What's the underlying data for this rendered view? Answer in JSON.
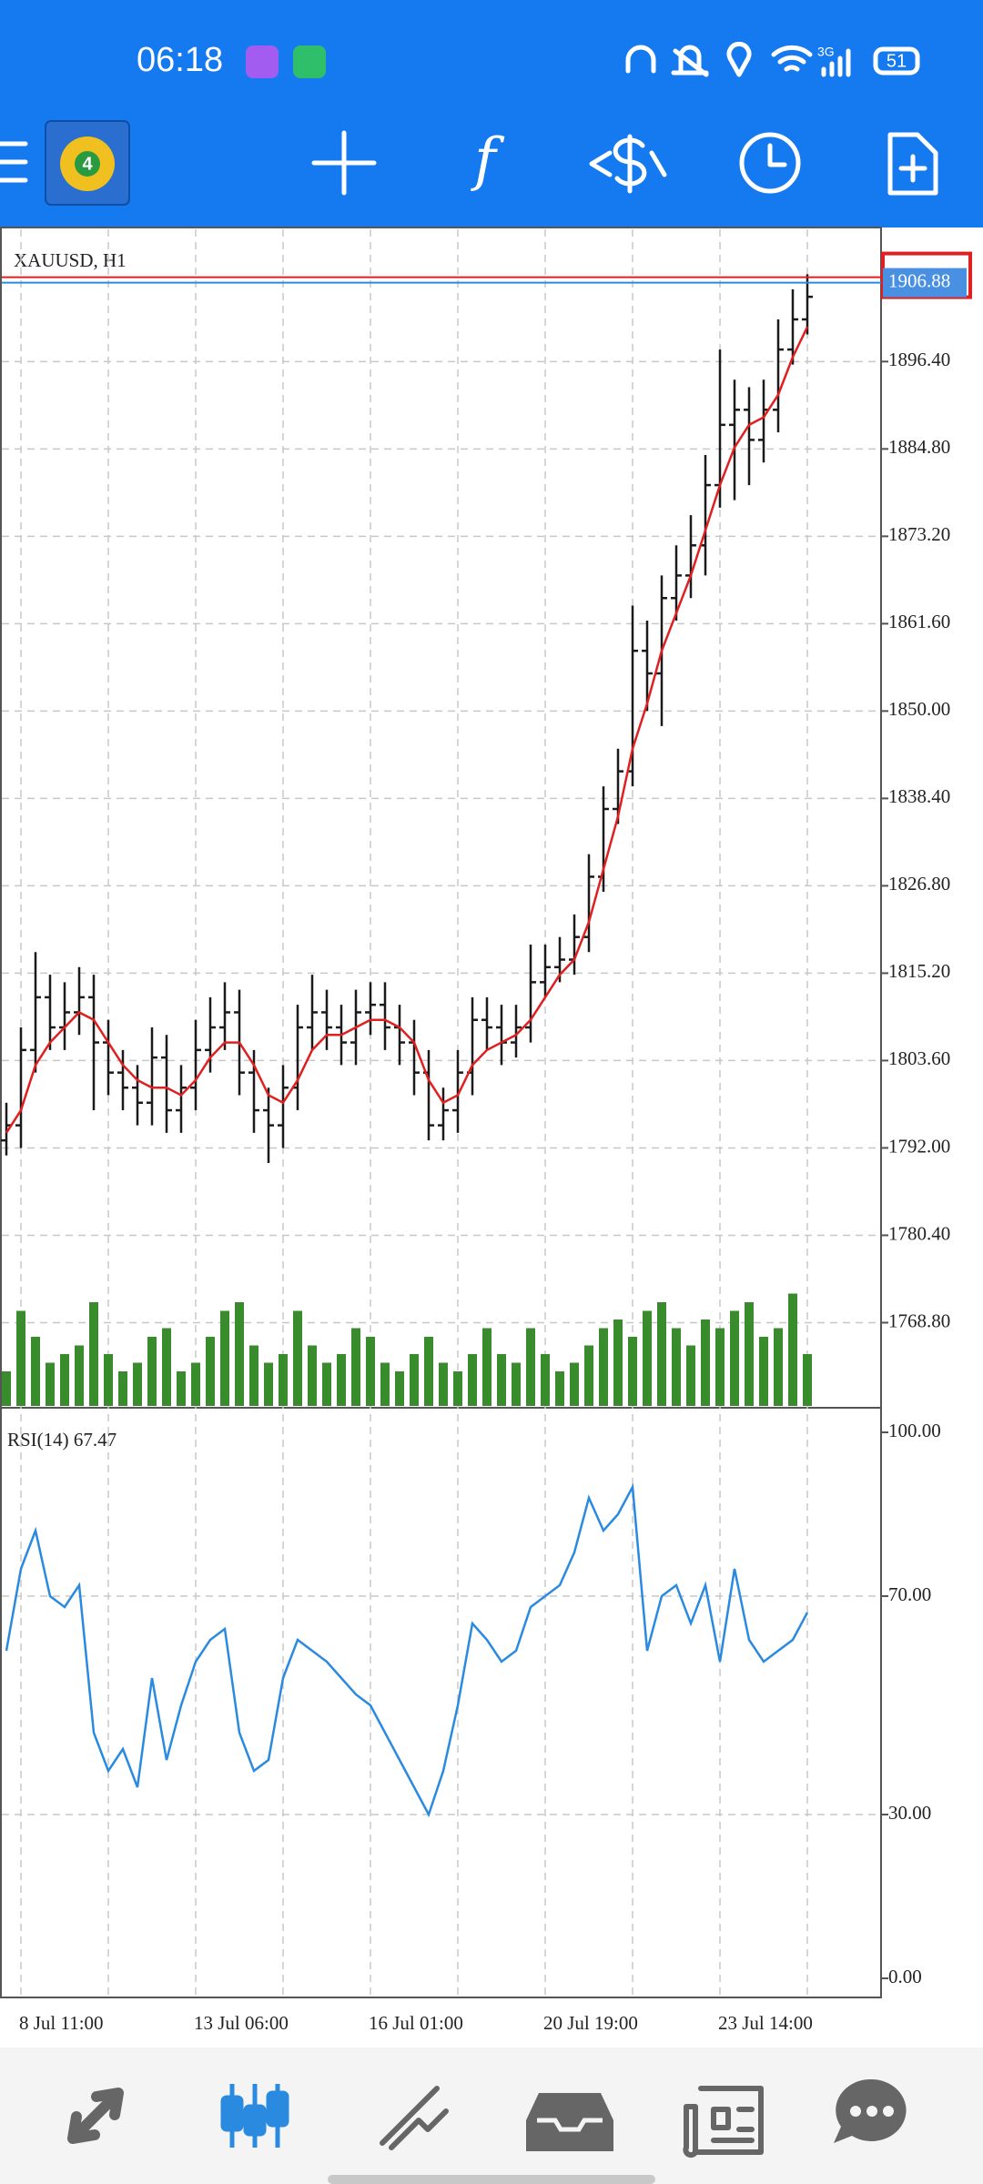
{
  "status_bar": {
    "time": "06:18",
    "network": "3G",
    "battery": "51"
  },
  "toolbar": {
    "indicator_icon": "f"
  },
  "chart_data": [
    {
      "type": "ohlc",
      "title": "XAUUSD, H1",
      "categories": [
        null,
        "8 Jul 11:00",
        null,
        null,
        null,
        null,
        null,
        null,
        null,
        null,
        null,
        null,
        null,
        "13 Jul 06:00",
        null,
        null,
        null,
        null,
        null,
        null,
        null,
        null,
        null,
        null,
        null,
        "16 Jul 01:00",
        null,
        null,
        null,
        null,
        null,
        null,
        null,
        null,
        null,
        null,
        null,
        "20 Jul 19:00",
        null,
        null,
        null,
        null,
        null,
        null,
        null,
        null,
        null,
        null,
        null,
        "23 Jul 14:00",
        null,
        null,
        null,
        null,
        null,
        null
      ],
      "open": [
        1793,
        1795,
        1805,
        1812,
        1808,
        1810,
        1812,
        1806,
        1802,
        1800,
        1798,
        1804,
        1797,
        1800,
        1805,
        1808,
        1810,
        1802,
        1797,
        1795,
        1800,
        1808,
        1810,
        1808,
        1806,
        1810,
        1811,
        1808,
        1806,
        1802,
        1795,
        1797,
        1802,
        1809,
        1808,
        1806,
        1808,
        1814,
        1816,
        1817,
        1820,
        1828,
        1837,
        1842,
        1858,
        1855,
        1865,
        1868,
        1872,
        1880,
        1888,
        1890,
        1886,
        1890,
        1898,
        1902
      ],
      "high": [
        1798,
        1808,
        1818,
        1815,
        1814,
        1816,
        1815,
        1809,
        1805,
        1803,
        1808,
        1807,
        1803,
        1809,
        1812,
        1814,
        1813,
        1805,
        1800,
        1803,
        1811,
        1815,
        1813,
        1811,
        1813,
        1814,
        1814,
        1811,
        1809,
        1805,
        1800,
        1805,
        1812,
        1812,
        1811,
        1811,
        1819,
        1819,
        1820,
        1823,
        1831,
        1840,
        1845,
        1864,
        1862,
        1868,
        1872,
        1876,
        1884,
        1898,
        1894,
        1893,
        1894,
        1902,
        1906,
        1908
      ],
      "low": [
        1791,
        1792,
        1802,
        1805,
        1805,
        1807,
        1797,
        1799,
        1797,
        1795,
        1795,
        1794,
        1794,
        1797,
        1802,
        1805,
        1799,
        1794,
        1790,
        1792,
        1797,
        1805,
        1805,
        1803,
        1803,
        1807,
        1805,
        1803,
        1799,
        1793,
        1793,
        1794,
        1799,
        1805,
        1803,
        1804,
        1806,
        1812,
        1814,
        1815,
        1818,
        1826,
        1835,
        1840,
        1850,
        1848,
        1862,
        1865,
        1868,
        1877,
        1878,
        1880,
        1883,
        1887,
        1896,
        1900
      ],
      "close": [
        1795,
        1805,
        1812,
        1808,
        1810,
        1812,
        1806,
        1802,
        1800,
        1798,
        1804,
        1797,
        1800,
        1805,
        1808,
        1810,
        1802,
        1797,
        1795,
        1800,
        1808,
        1810,
        1808,
        1806,
        1810,
        1811,
        1808,
        1806,
        1802,
        1795,
        1797,
        1802,
        1809,
        1808,
        1806,
        1808,
        1814,
        1816,
        1817,
        1820,
        1828,
        1837,
        1842,
        1858,
        1855,
        1865,
        1868,
        1872,
        1880,
        1888,
        1890,
        1886,
        1890,
        1898,
        1902,
        1905
      ],
      "color": "#1a1a1a",
      "moving_average": {
        "color": "#e02020",
        "values": [
          1794,
          1797,
          1803,
          1806,
          1808,
          1810,
          1809,
          1806,
          1803,
          1801,
          1800,
          1800,
          1799,
          1801,
          1804,
          1806,
          1806,
          1803,
          1799,
          1798,
          1801,
          1805,
          1807,
          1807,
          1808,
          1809,
          1809,
          1808,
          1806,
          1801,
          1798,
          1799,
          1803,
          1805,
          1806,
          1807,
          1809,
          1812,
          1815,
          1817,
          1822,
          1829,
          1836,
          1845,
          1851,
          1858,
          1863,
          1868,
          1874,
          1880,
          1885,
          1888,
          1889,
          1892,
          1897,
          1901
        ]
      },
      "volume": {
        "color": "#3a8a2e",
        "values": [
          20,
          55,
          40,
          25,
          30,
          35,
          60,
          30,
          20,
          25,
          40,
          45,
          20,
          25,
          40,
          55,
          60,
          35,
          25,
          30,
          55,
          35,
          25,
          30,
          45,
          40,
          25,
          20,
          30,
          40,
          25,
          20,
          30,
          45,
          30,
          25,
          45,
          30,
          20,
          25,
          35,
          45,
          50,
          40,
          55,
          60,
          45,
          35,
          50,
          45,
          55,
          60,
          40,
          45,
          65,
          30
        ]
      },
      "current_price": 1906.88,
      "ylim": [
        1757.5,
        1914.2
      ],
      "yticks": [
        {
          "value": 1768.8,
          "label": "1768.80"
        },
        {
          "value": 1780.4,
          "label": "1780.40"
        },
        {
          "value": 1792,
          "label": "1792.00"
        },
        {
          "value": 1803.6,
          "label": "1803.60"
        },
        {
          "value": 1815.2,
          "label": "1815.20"
        },
        {
          "value": 1826.8,
          "label": "1826.80"
        },
        {
          "value": 1838.4,
          "label": "1838.40"
        },
        {
          "value": 1850,
          "label": "1850.00"
        },
        {
          "value": 1861.6,
          "label": "1861.60"
        },
        {
          "value": 1873.2,
          "label": "1873.20"
        },
        {
          "value": 1884.8,
          "label": "1884.80"
        },
        {
          "value": 1896.4,
          "label": "1896.40"
        }
      ],
      "grid": true
    },
    {
      "type": "line",
      "title": "RSI(14) 67.47",
      "color": "#2a8ae0",
      "values": [
        60,
        75,
        82,
        70,
        68,
        72,
        45,
        38,
        42,
        35,
        55,
        40,
        50,
        58,
        62,
        64,
        45,
        38,
        40,
        55,
        62,
        60,
        58,
        55,
        52,
        50,
        45,
        40,
        35,
        30,
        38,
        50,
        65,
        62,
        58,
        60,
        68,
        70,
        72,
        78,
        88,
        82,
        85,
        90,
        60,
        70,
        72,
        65,
        72,
        58,
        75,
        62,
        58,
        60,
        62,
        67
      ],
      "ylim": [
        0,
        100
      ],
      "yticks": [
        {
          "value": 100,
          "label": "100.00"
        },
        {
          "value": 70,
          "label": "70.00"
        },
        {
          "value": 30,
          "label": "30.00"
        },
        {
          "value": 0,
          "label": "0.00"
        }
      ],
      "grid": true
    }
  ]
}
